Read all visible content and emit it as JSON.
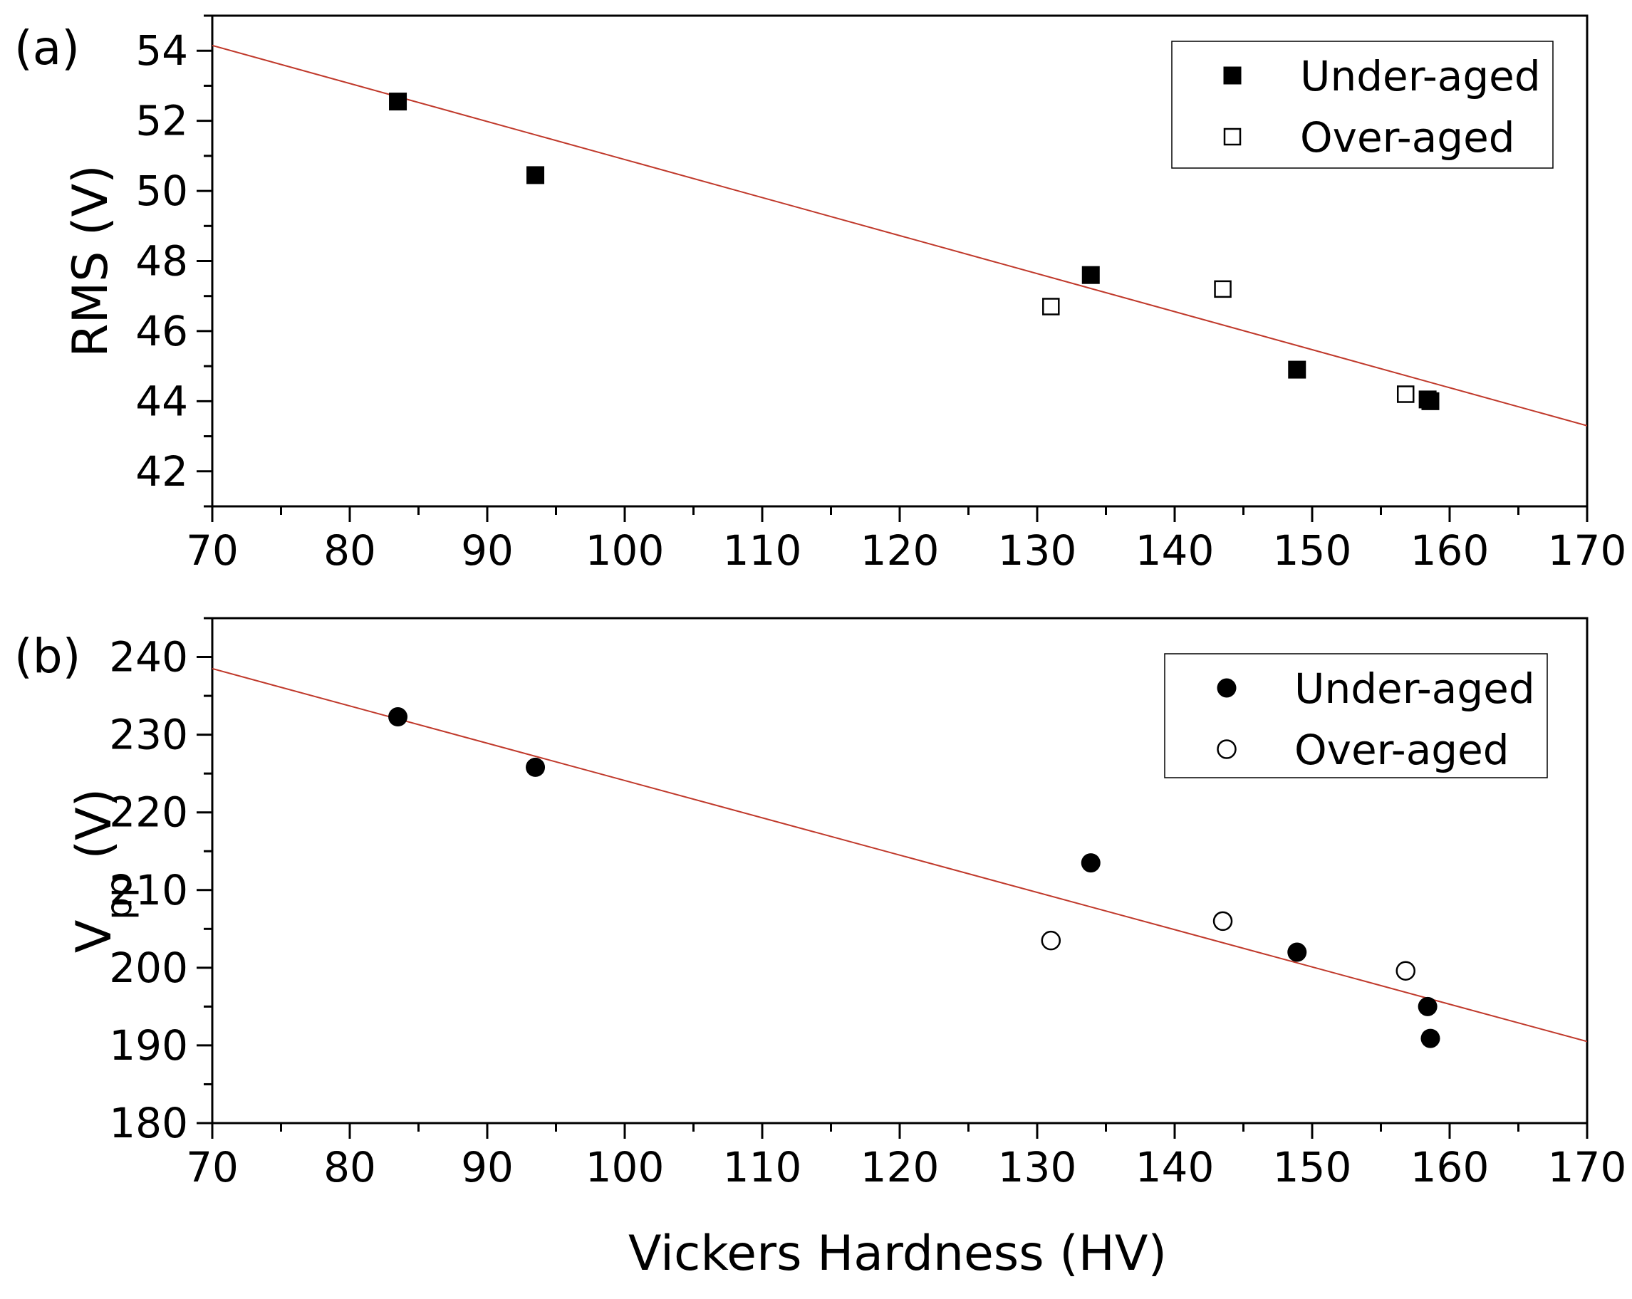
{
  "chart_data": [
    {
      "type": "scatter",
      "panel_label": "(a)",
      "title": "",
      "xlabel": "Vickers Hardness (HV)",
      "ylabel": "RMS (V)",
      "xlim": [
        70,
        170
      ],
      "ylim": [
        41,
        55
      ],
      "xticks": [
        "70",
        "80",
        "90",
        "100",
        "110",
        "120",
        "130",
        "140",
        "150",
        "160",
        "170"
      ],
      "yticks": [
        "42",
        "44",
        "46",
        "48",
        "50",
        "52",
        "54"
      ],
      "series": [
        {
          "name": "Under-aged",
          "marker": "filled-square",
          "color": "#000000",
          "x": [
            83.5,
            93.5,
            133.9,
            148.9,
            158.4,
            158.6
          ],
          "y": [
            52.55,
            50.45,
            47.6,
            44.9,
            44.05,
            44.0
          ]
        },
        {
          "name": "Over-aged",
          "marker": "open-square",
          "color": "#000000",
          "x": [
            131.0,
            143.5,
            156.8
          ],
          "y": [
            46.7,
            47.2,
            44.2
          ]
        }
      ],
      "fit_line": {
        "color": "#c0392b",
        "x": [
          70,
          170
        ],
        "y": [
          54.15,
          43.3
        ]
      },
      "legend": {
        "position": "top-right",
        "entries": [
          "Under-aged",
          "Over-aged"
        ]
      }
    },
    {
      "type": "scatter",
      "panel_label": "(b)",
      "title": "",
      "xlabel": "Vickers Hardness (HV)",
      "ylabel_main": "V",
      "ylabel_sub": "pp",
      "ylabel_unit": "(V)",
      "xlim": [
        70,
        170
      ],
      "ylim": [
        180,
        245
      ],
      "xticks": [
        "70",
        "80",
        "90",
        "100",
        "110",
        "120",
        "130",
        "140",
        "150",
        "160",
        "170"
      ],
      "yticks": [
        "180",
        "190",
        "200",
        "210",
        "220",
        "230",
        "240"
      ],
      "series": [
        {
          "name": "Under-aged",
          "marker": "filled-circle",
          "color": "#000000",
          "x": [
            83.5,
            93.5,
            133.9,
            148.9,
            158.4,
            158.6
          ],
          "y": [
            232.3,
            225.8,
            213.5,
            202.0,
            195.0,
            190.9
          ]
        },
        {
          "name": "Over-aged",
          "marker": "open-circle",
          "color": "#000000",
          "x": [
            131.0,
            143.5,
            156.8
          ],
          "y": [
            203.5,
            206.0,
            199.6
          ]
        }
      ],
      "fit_line": {
        "color": "#c0392b",
        "x": [
          70,
          170
        ],
        "y": [
          238.5,
          190.5
        ]
      },
      "legend": {
        "position": "top-right",
        "entries": [
          "Under-aged",
          "Over-aged"
        ]
      }
    }
  ]
}
